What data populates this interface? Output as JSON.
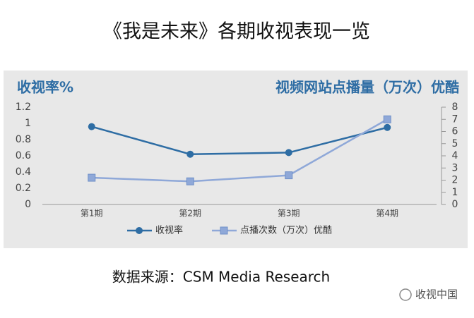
{
  "chart_data": {
    "type": "line",
    "title": "《我是未来》各期收视表现一览",
    "y_label": "收视率%",
    "y2_label": "视频网站点播量（万次）优酷",
    "categories": [
      "第1期",
      "第2期",
      "第3期",
      "第4期"
    ],
    "series": [
      {
        "name": "收视率",
        "color": "#2e6da4",
        "marker": "circle",
        "values": [
          0.96,
          0.62,
          0.64,
          0.95
        ]
      },
      {
        "name": "点播次数（万次）优酷",
        "color": "#8fa8d8",
        "marker": "square",
        "axis": "y2",
        "values": [
          2.2,
          1.9,
          2.4,
          7.0
        ]
      }
    ],
    "ylim": [
      0,
      1.2
    ],
    "yticks": [
      0,
      0.2,
      0.4,
      0.6,
      0.8,
      1,
      1.2
    ],
    "y2lim": [
      0,
      8
    ],
    "y2ticks": [
      0,
      1,
      2,
      3,
      4,
      5,
      6,
      7,
      8
    ],
    "legend": "bottom",
    "grid": false
  },
  "source": "数据来源：CSM Media Research",
  "watermark": "收视中国"
}
